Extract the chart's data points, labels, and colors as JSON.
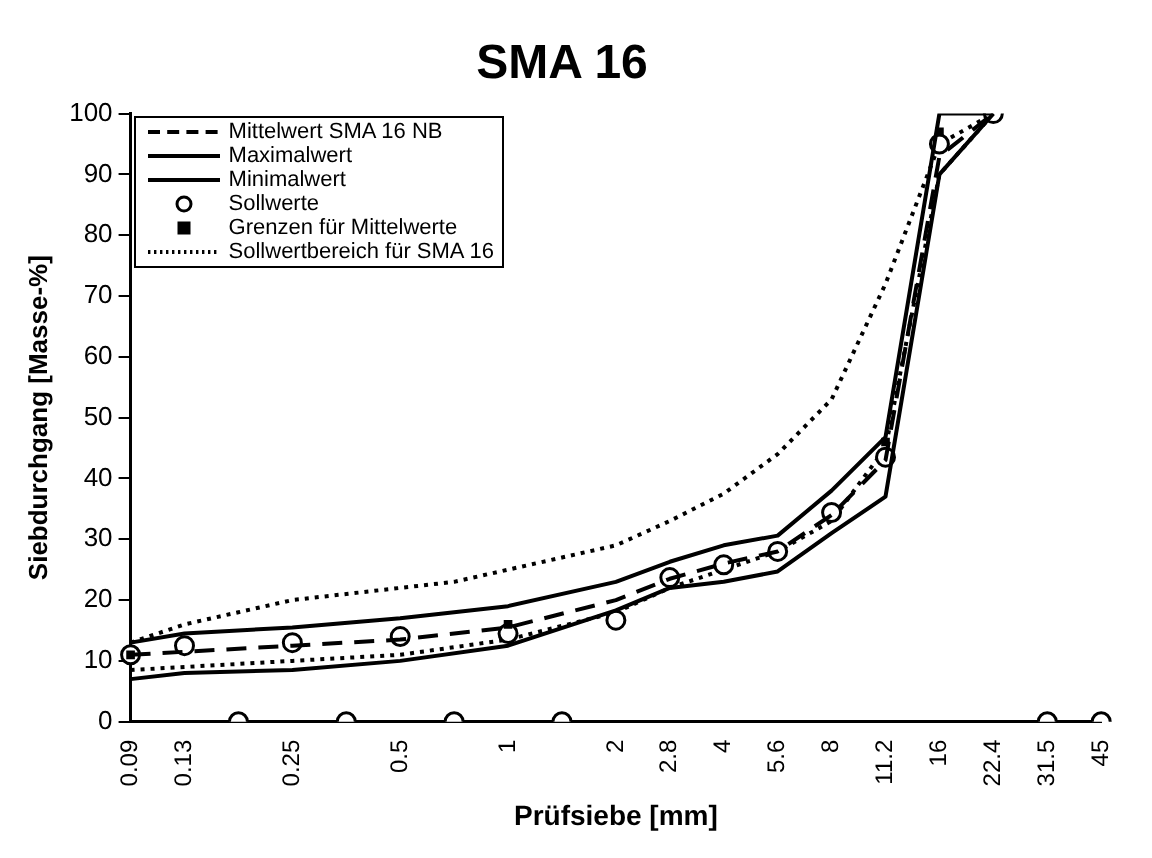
{
  "chart_data": {
    "type": "line",
    "title": "SMA 16",
    "xlabel": "Prüfsiebe [mm]",
    "ylabel": "Siebdurchgang [Masse-%]",
    "categories": [
      "0.09",
      "0.13",
      null,
      "0.25",
      null,
      "0.5",
      null,
      "1",
      null,
      "2",
      "2.8",
      "4",
      "5.6",
      "8",
      "11.2",
      "16",
      "22.4",
      "31.5",
      "45"
    ],
    "ylim": [
      0,
      100
    ],
    "yticks": [
      0,
      10,
      20,
      30,
      40,
      50,
      60,
      70,
      80,
      90,
      100
    ],
    "grid": false,
    "legend": "top left",
    "series": [
      {
        "name": "Mittelwert SMA 16 NB",
        "type": "line",
        "color": "#000000",
        "line_style": "dashed",
        "marker": "none",
        "values": [
          11,
          11.5,
          null,
          12.5,
          null,
          13.5,
          null,
          15.5,
          null,
          20,
          23.5,
          26,
          28,
          34,
          43,
          93,
          100,
          null,
          null
        ]
      },
      {
        "name": "Maximalwert",
        "type": "line",
        "color": "#000000",
        "line_style": "solid",
        "marker": "none",
        "values": [
          13,
          14.5,
          null,
          15.5,
          null,
          17,
          null,
          19,
          null,
          23,
          26.3,
          29,
          30.6,
          38,
          46.8,
          100,
          100,
          null,
          null
        ]
      },
      {
        "name": "Minimalwert",
        "type": "line",
        "color": "#000000",
        "line_style": "solid",
        "marker": "none",
        "values": [
          7,
          8,
          null,
          8.5,
          null,
          10,
          null,
          12.5,
          null,
          18.3,
          22,
          23,
          24.7,
          31,
          37,
          90,
          100,
          null,
          null
        ]
      },
      {
        "name": "Sollwerte",
        "type": "scatter",
        "color": "#000000",
        "marker": "circle",
        "values": [
          11,
          12.5,
          0,
          13,
          0,
          14,
          0,
          14.5,
          0,
          16.7,
          23.7,
          25.8,
          28,
          34.4,
          43.5,
          95,
          100,
          0,
          0
        ]
      },
      {
        "name": "Grenzen für Mittelwerte",
        "type": "scatter",
        "color": "#000000",
        "marker": "square",
        "values": [
          11,
          null,
          null,
          null,
          null,
          null,
          null,
          16,
          null,
          null,
          null,
          null,
          null,
          null,
          46,
          97,
          null,
          null,
          null
        ]
      },
      {
        "name": "Sollwertbereich für SMA 16",
        "type": "line",
        "color": "#000000",
        "line_style": "dotted",
        "marker": "none",
        "values": [
          13,
          16,
          18,
          20,
          21,
          22,
          23,
          25,
          27,
          29,
          33,
          37.5,
          44,
          53,
          72,
          95,
          100,
          null,
          null
        ]
      },
      {
        "type": "line",
        "color": "#000000",
        "line_style": "dotted",
        "marker": "none",
        "values": [
          8.5,
          9,
          null,
          10,
          null,
          11,
          null,
          13.5,
          null,
          18,
          22,
          25,
          28,
          33,
          45,
          90,
          100,
          null,
          null
        ]
      }
    ]
  }
}
